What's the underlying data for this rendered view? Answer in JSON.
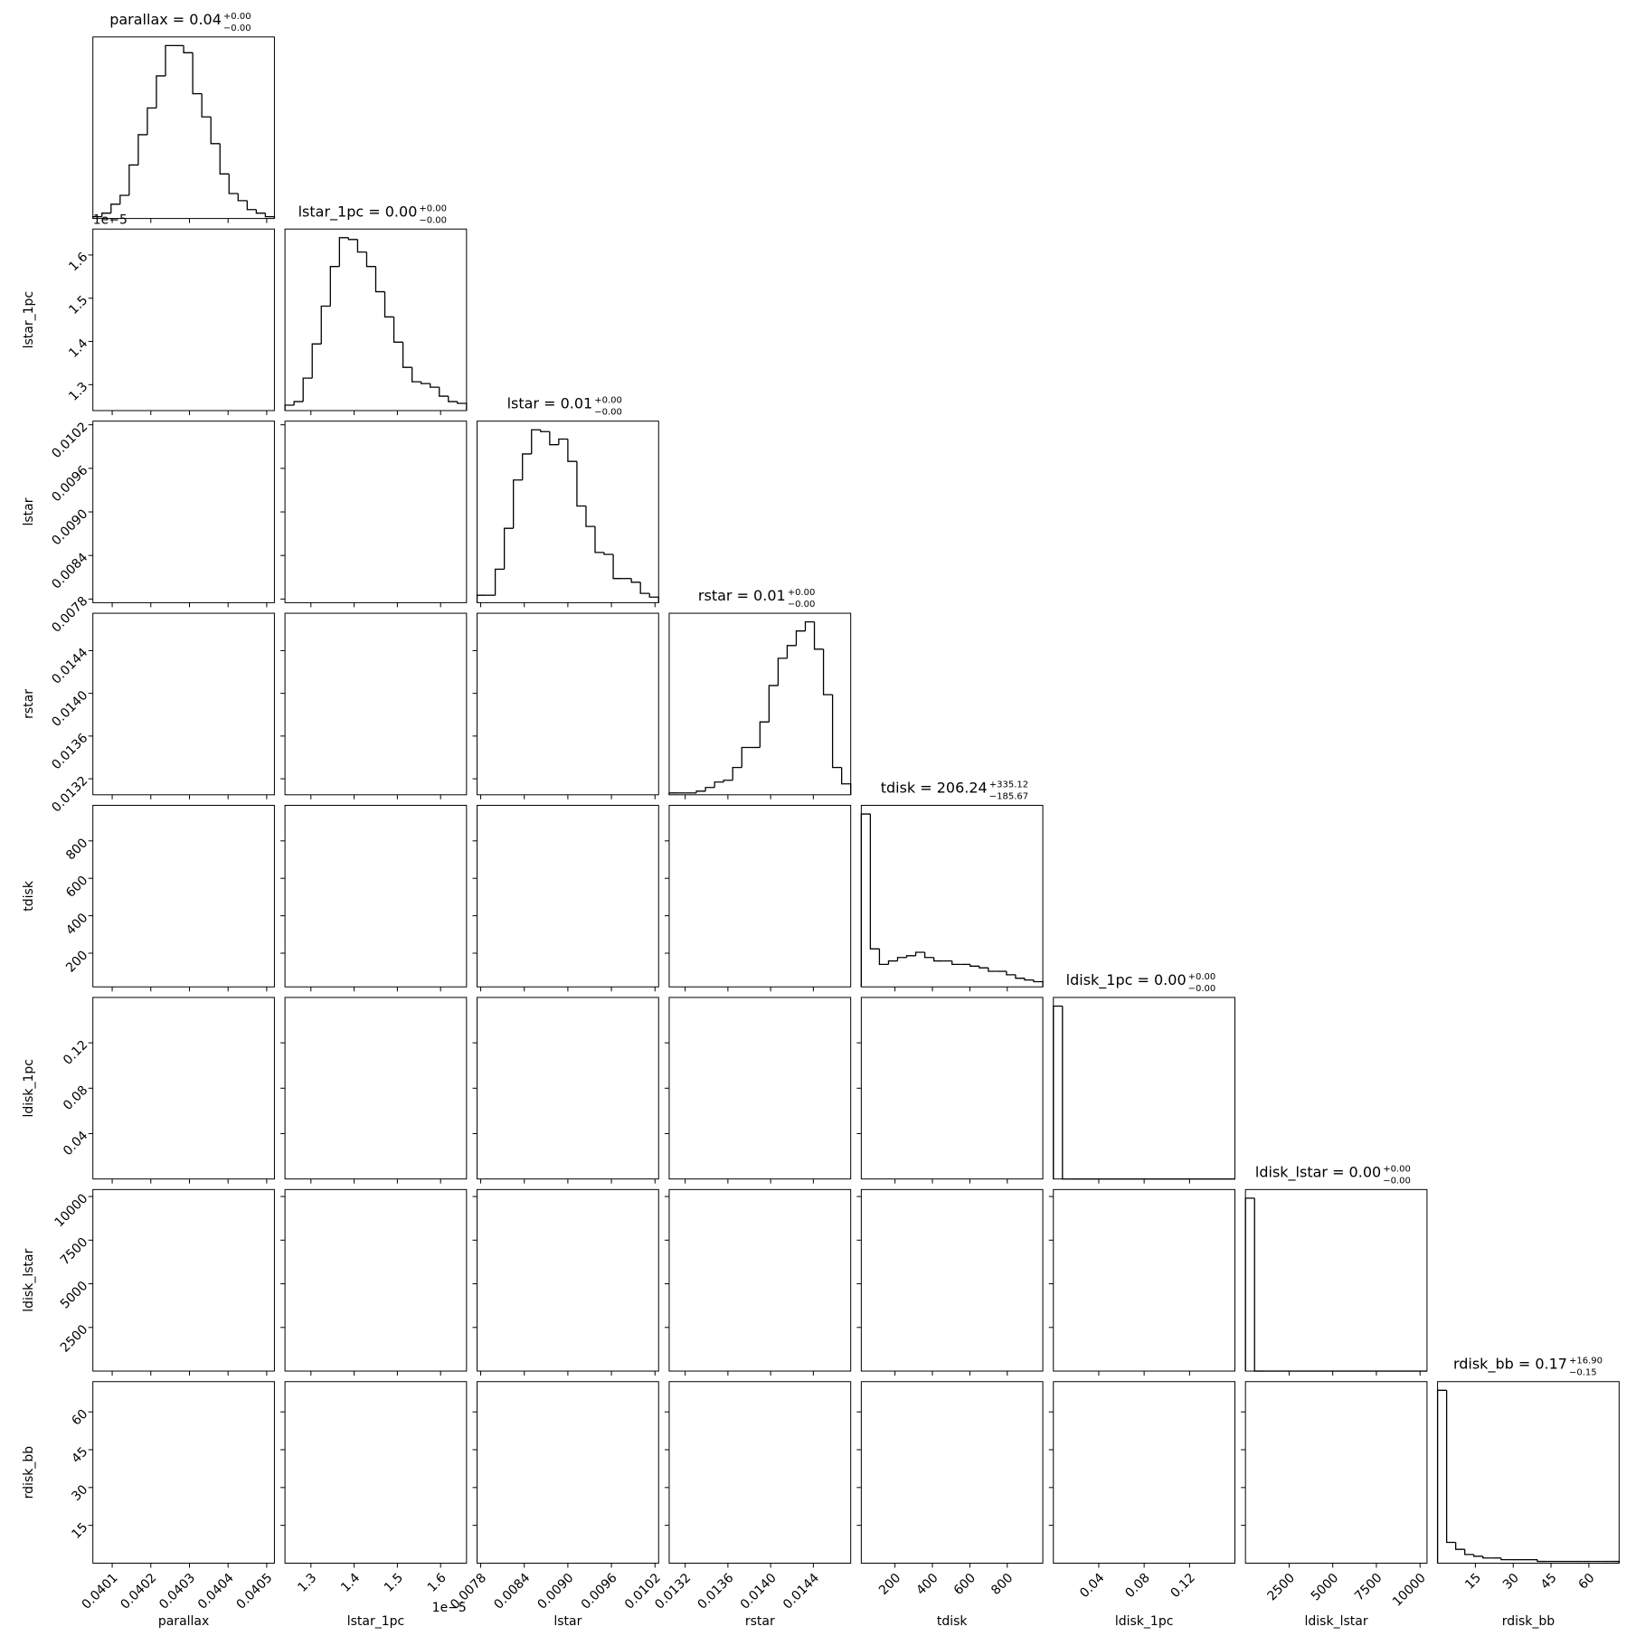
{
  "chart_data": {
    "type": "corner",
    "params": [
      {
        "label": "parallax",
        "title": {
          "text": "parallax = 0.04",
          "plus": "+0.00",
          "minus": "−0.00"
        },
        "lim": [
          0.04005,
          0.04052
        ],
        "ticks": [
          0.0401,
          0.0402,
          0.0403,
          0.0404,
          0.0405
        ],
        "hist": [
          1,
          3,
          8,
          13,
          30,
          47,
          62,
          80,
          97,
          97,
          93,
          70,
          57,
          42,
          25,
          14,
          10,
          5,
          3,
          1
        ]
      },
      {
        "label": "lstar_1pc",
        "title": {
          "text": "lstar_1pc = 0.00",
          "plus": "+0.00",
          "minus": "−0.00"
        },
        "lim": [
          1.24e-05,
          1.66e-05
        ],
        "ticks": [
          {
            "value": 1.3e-05,
            "label": "1.3"
          },
          {
            "value": 1.4e-05,
            "label": "1.4"
          },
          {
            "value": 1.5e-05,
            "label": "1.5"
          },
          {
            "value": 1.6e-05,
            "label": "1.6"
          }
        ],
        "offset": "1e−5",
        "hist": [
          3,
          5,
          18,
          37,
          58,
          80,
          96,
          95,
          88,
          80,
          66,
          52,
          38,
          24,
          16,
          15,
          13,
          8,
          5,
          4
        ]
      },
      {
        "label": "lstar",
        "title": {
          "text": "lstar = 0.01",
          "plus": "+0.00",
          "minus": "−0.00"
        },
        "lim": [
          0.00775,
          0.01025
        ],
        "ticks": [
          0.0078,
          0.0084,
          {
            "value": 0.009,
            "label": "0.0090"
          },
          0.0096,
          0.0102
        ],
        "hist": [
          4,
          4,
          18,
          40,
          66,
          80,
          93,
          92,
          85,
          88,
          76,
          52,
          41,
          27,
          26,
          13,
          13,
          11,
          5,
          3
        ]
      },
      {
        "label": "rstar",
        "title": {
          "text": "rstar = 0.01",
          "plus": "+0.00",
          "minus": "−0.00"
        },
        "lim": [
          0.01305,
          0.01475
        ],
        "ticks": [
          0.0132,
          0.0136,
          {
            "value": 0.014,
            "label": "0.0140"
          },
          0.0144
        ],
        "hist": [
          1,
          1,
          1,
          2,
          4,
          7,
          8,
          15,
          26,
          26,
          40,
          60,
          75,
          82,
          90,
          95,
          80,
          55,
          15,
          6
        ]
      },
      {
        "label": "tdisk",
        "title": {
          "text": "tdisk = 206.24",
          "plus": "+335.12",
          "minus": "−185.67"
        },
        "lim": [
          20,
          990
        ],
        "ticks": [
          200,
          400,
          600,
          800
        ],
        "hist": [
          100,
          22,
          13,
          15,
          17,
          18,
          20,
          17,
          15,
          15,
          13,
          13,
          12,
          11,
          9,
          9,
          7,
          5,
          4,
          3
        ]
      },
      {
        "label": "ldisk_1pc",
        "title": {
          "text": "ldisk_1pc = 0.00",
          "plus": "+0.00",
          "minus": "−0.00"
        },
        "lim": [
          0,
          0.16
        ],
        "ticks": [
          0.04,
          0.08,
          0.12
        ],
        "hist": [
          100,
          0,
          0,
          0,
          0,
          0,
          0,
          0,
          0,
          0,
          0,
          0,
          0,
          0,
          0,
          0,
          0,
          0,
          0,
          0
        ]
      },
      {
        "label": "ldisk_lstar",
        "title": {
          "text": "ldisk_lstar = 0.00",
          "plus": "+0.00",
          "minus": "−0.00"
        },
        "lim": [
          0,
          10400
        ],
        "ticks": [
          2500,
          5000,
          7500,
          10000
        ],
        "hist": [
          100,
          0,
          0,
          0,
          0,
          0,
          0,
          0,
          0,
          0,
          0,
          0,
          0,
          0,
          0,
          0,
          0,
          0,
          0,
          0
        ]
      },
      {
        "label": "rdisk_bb",
        "title": {
          "text": "rdisk_bb = 0.17",
          "plus": "+16.90",
          "minus": "−0.15"
        },
        "lim": [
          0,
          72
        ],
        "ticks": [
          15,
          30,
          45,
          60
        ],
        "hist": [
          100,
          12,
          8,
          5,
          4,
          3,
          3,
          2,
          2,
          2,
          2,
          1,
          1,
          1,
          1,
          1,
          1,
          1,
          1,
          1
        ]
      }
    ]
  }
}
